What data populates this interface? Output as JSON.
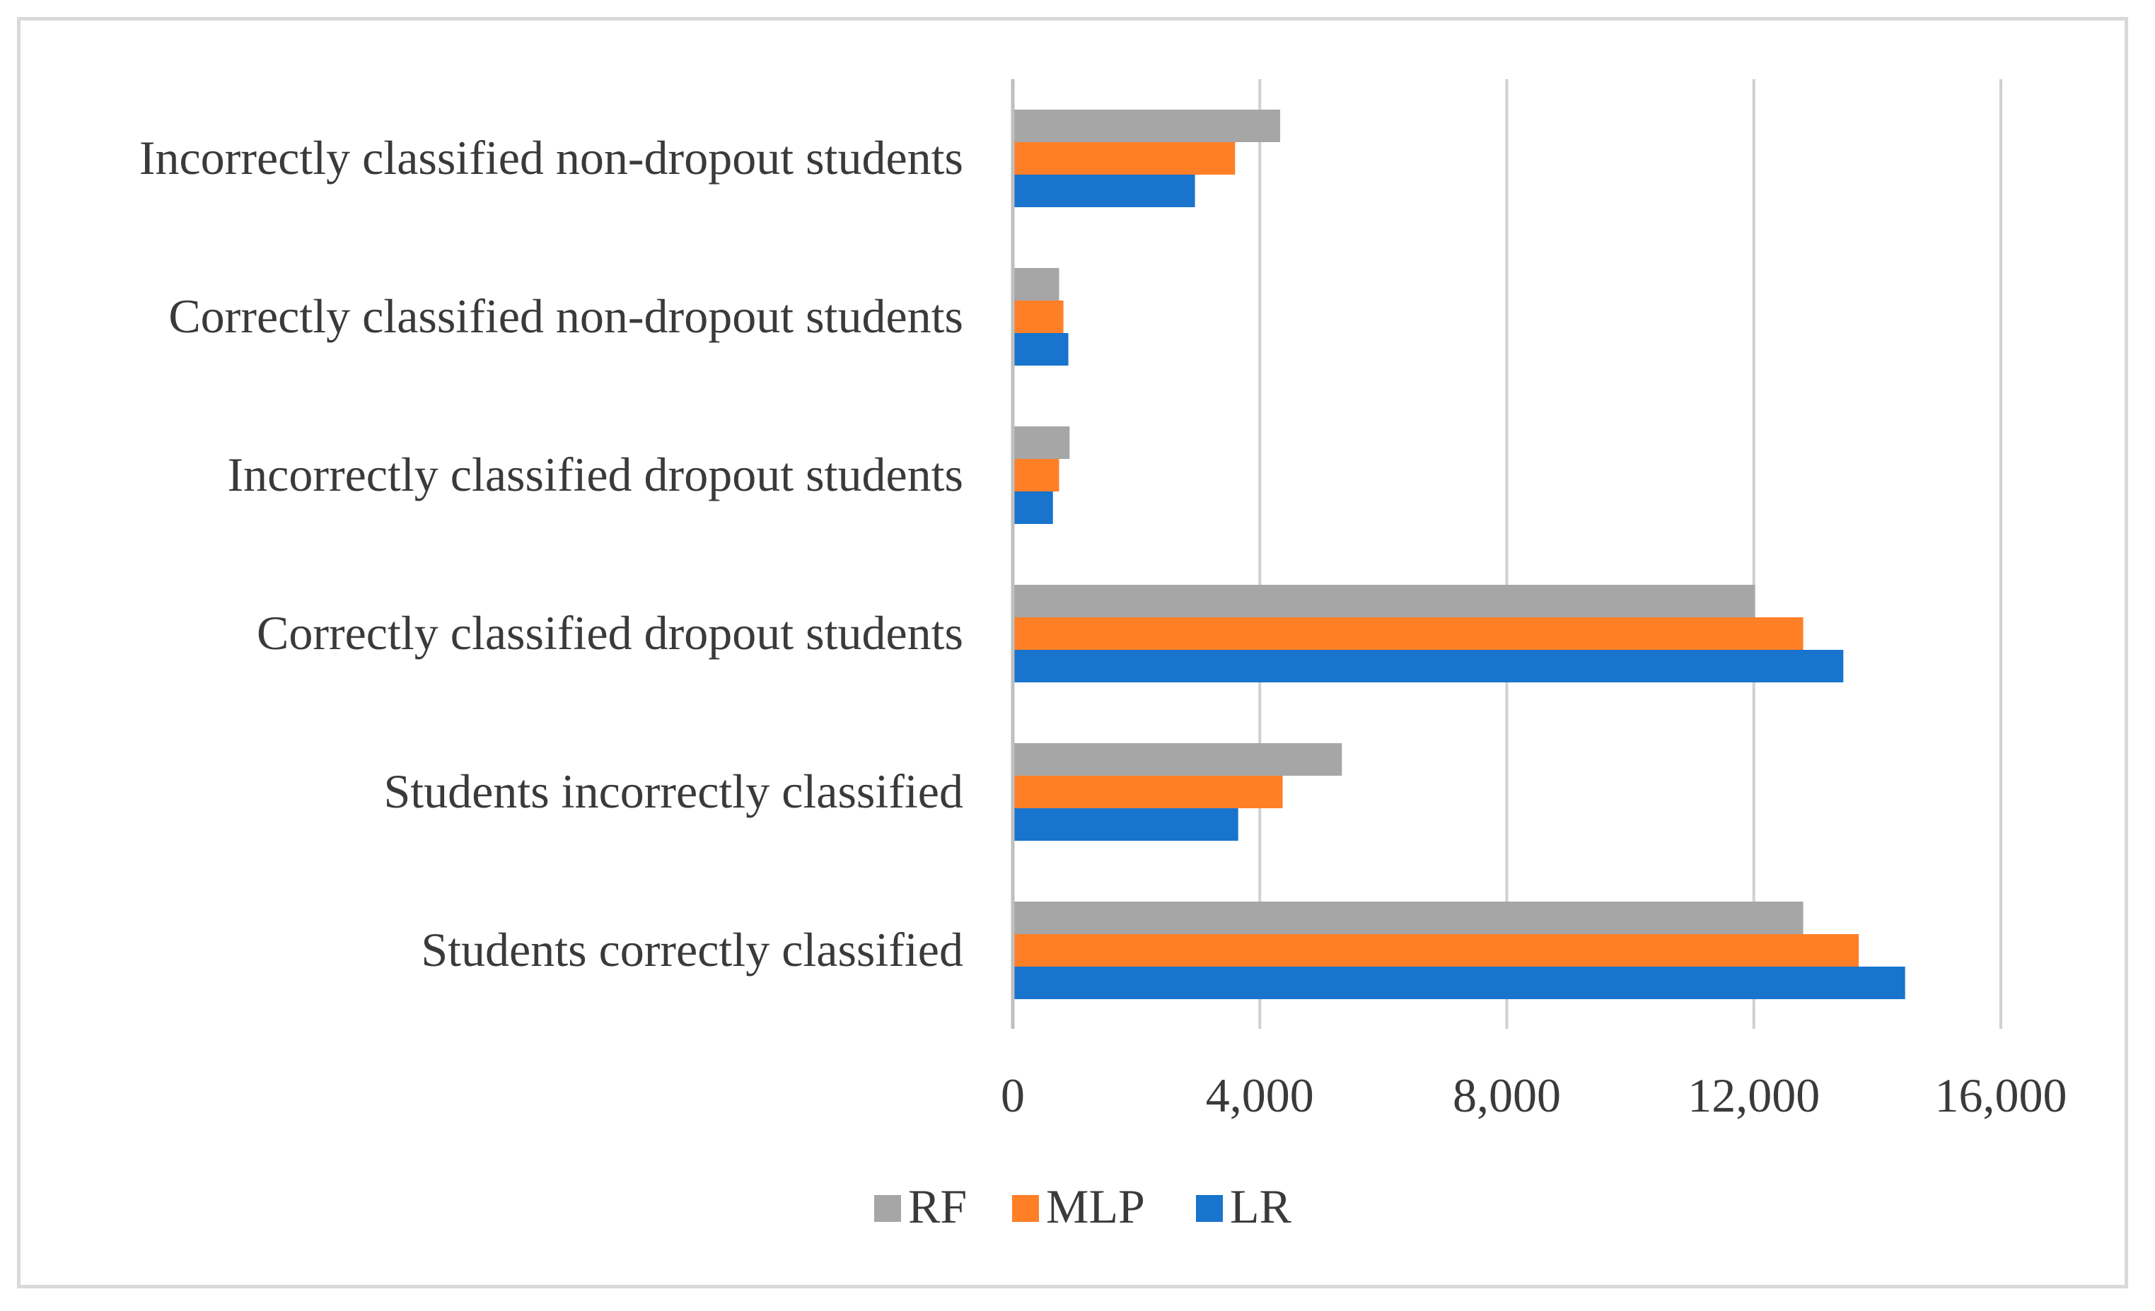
{
  "chart_data": {
    "type": "bar",
    "orientation": "horizontal",
    "title": "",
    "xlabel": "",
    "ylabel": "",
    "categories": [
      "Students correctly classified",
      "Students incorrectly classified",
      "Correctly classified dropout students",
      "Incorrectly classified dropout students",
      "Correctly classified non-dropout students",
      "Incorrectly classified non-dropout students"
    ],
    "series": [
      {
        "name": "LR",
        "color": "#1874cd",
        "values": [
          14450,
          3650,
          13450,
          650,
          900,
          2950
        ]
      },
      {
        "name": "MLP",
        "color": "#ff7f27",
        "values": [
          13700,
          4370,
          12800,
          750,
          820,
          3600
        ]
      },
      {
        "name": "RF",
        "color": "#a6a6a6",
        "values": [
          12800,
          5330,
          12020,
          920,
          750,
          4330
        ]
      }
    ],
    "xlim": [
      0,
      16000
    ],
    "xticks": [
      0,
      4000,
      8000,
      12000,
      16000
    ],
    "xtick_labels": [
      "0",
      "4,000",
      "8,000",
      "12,000",
      "16,000"
    ],
    "grid": true,
    "legend": {
      "position": "bottom",
      "order": [
        "RF",
        "MLP",
        "LR"
      ]
    }
  }
}
